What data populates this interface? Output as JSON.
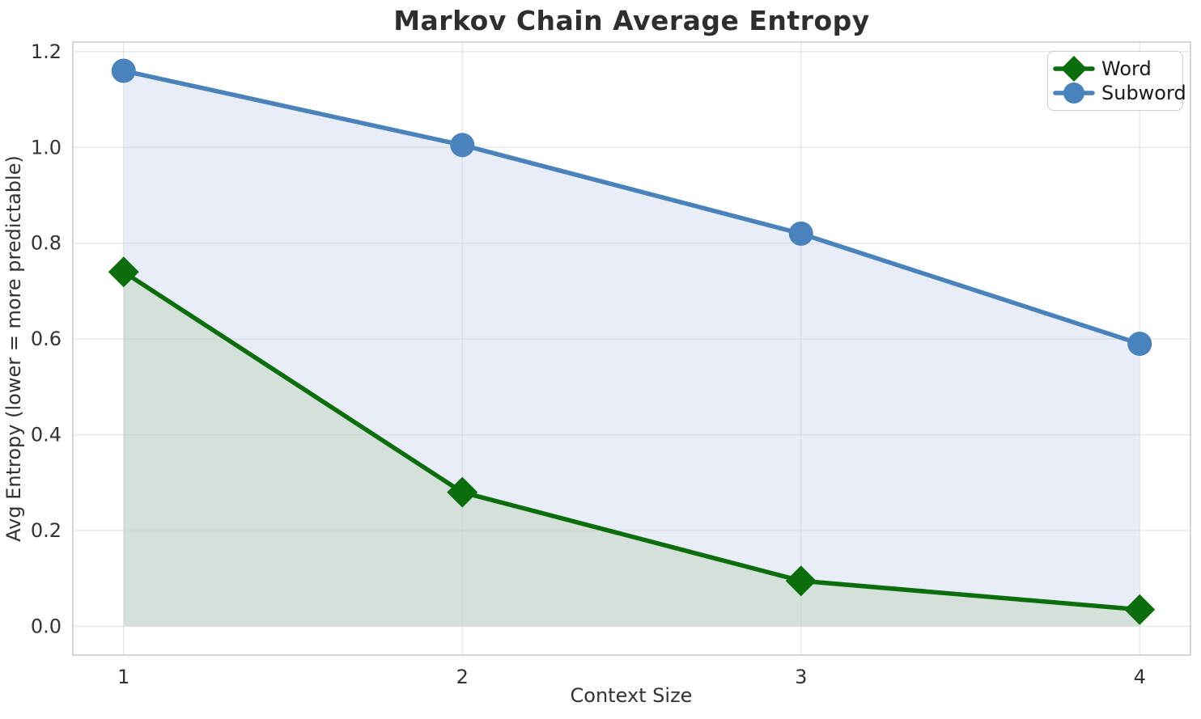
{
  "chart_data": {
    "type": "line",
    "title": "Markov Chain Average Entropy",
    "xlabel": "Context Size",
    "ylabel": "Avg Entropy (lower = more predictable)",
    "x": [
      1,
      2,
      3,
      4
    ],
    "xtick_labels": [
      "1",
      "2",
      "3",
      "4"
    ],
    "ytick_values": [
      0.0,
      0.2,
      0.4,
      0.6,
      0.8,
      1.0,
      1.2
    ],
    "ytick_labels": [
      "0.0",
      "0.2",
      "0.4",
      "0.6",
      "0.8",
      "1.0",
      "1.2"
    ],
    "xlim": [
      0.85,
      4.15
    ],
    "ylim": [
      -0.06,
      1.22
    ],
    "grid": true,
    "legend_position": "upper right",
    "fill_to_zero": true,
    "series": [
      {
        "name": "Word",
        "marker": "diamond",
        "color": "#0b6d0b",
        "fill_color": "#d4e0da",
        "values": [
          0.74,
          0.28,
          0.095,
          0.035
        ]
      },
      {
        "name": "Subword",
        "marker": "circle",
        "color": "#4a83bb",
        "fill_color": "#e9edf7",
        "values": [
          1.16,
          1.005,
          0.82,
          0.59
        ]
      }
    ]
  },
  "style": {
    "grid_color": "#d0d0d0",
    "spine_color": "#c9c9c9",
    "title_color": "#2e2e2e",
    "tick_color": "#333333",
    "legend_border_color": "#cccccc",
    "background": "#ffffff"
  }
}
